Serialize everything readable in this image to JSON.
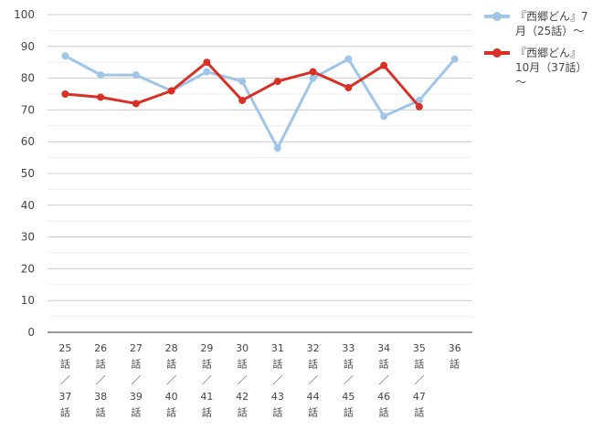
{
  "chart_data": {
    "type": "line",
    "title": "",
    "xlabel": "",
    "ylabel": "",
    "ylim": [
      0,
      100
    ],
    "yticks": [
      0,
      10,
      20,
      30,
      40,
      50,
      60,
      70,
      80,
      90,
      100
    ],
    "grid": true,
    "legend_position": "top-right",
    "categories": [
      [
        "25",
        "話",
        "／",
        "37",
        "話"
      ],
      [
        "26",
        "話",
        "／",
        "38",
        "話"
      ],
      [
        "27",
        "話",
        "／",
        "39",
        "話"
      ],
      [
        "28",
        "話",
        "／",
        "40",
        "話"
      ],
      [
        "29",
        "話",
        "／",
        "41",
        "話"
      ],
      [
        "30",
        "話",
        "／",
        "42",
        "話"
      ],
      [
        "31",
        "話",
        "／",
        "43",
        "話"
      ],
      [
        "32",
        "話",
        "／",
        "44",
        "話"
      ],
      [
        "33",
        "話",
        "／",
        "45",
        "話"
      ],
      [
        "34",
        "話",
        "／",
        "46",
        "話"
      ],
      [
        "35",
        "話",
        "／",
        "47",
        "話"
      ],
      [
        "36",
        "話"
      ]
    ],
    "series": [
      {
        "name": "『西郷どん』7月（25話）～",
        "color": "#9fc5e8",
        "values": [
          87,
          81,
          81,
          76,
          82,
          79,
          58,
          80,
          86,
          68,
          73,
          86
        ]
      },
      {
        "name": "『西郷どん』10月（37話）～",
        "color": "#d93025",
        "values": [
          75,
          74,
          72,
          76,
          85,
          73,
          79,
          82,
          77,
          84,
          71,
          null
        ]
      }
    ]
  },
  "legend": {
    "items": [
      {
        "lines": [
          "『西郷どん』7",
          "月（25話）～"
        ]
      },
      {
        "lines": [
          "『西郷どん』",
          "10月（37話）",
          "～"
        ]
      }
    ]
  }
}
